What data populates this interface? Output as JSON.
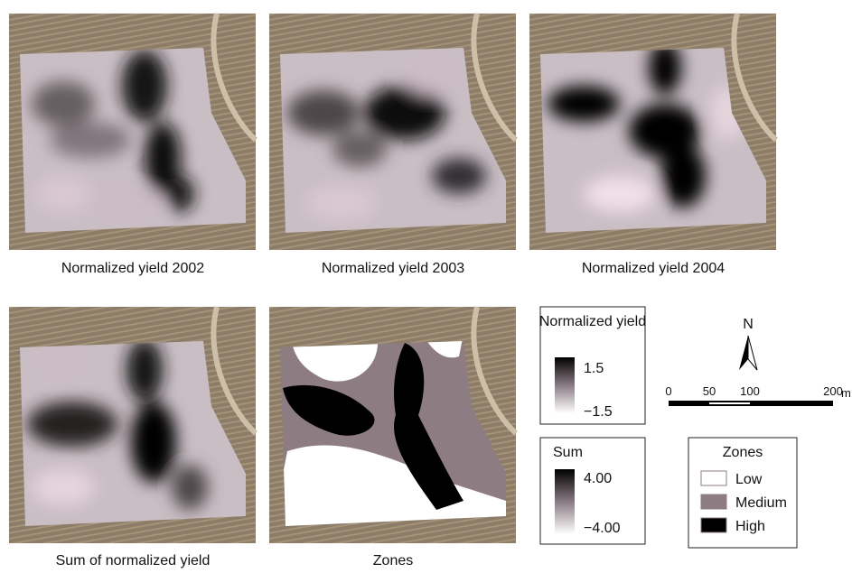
{
  "panels": [
    {
      "caption": "Normalized yield 2002"
    },
    {
      "caption": "Normalized yield 2003"
    },
    {
      "caption": "Normalized yield 2004"
    },
    {
      "caption": "Sum of normalized yield"
    },
    {
      "caption": "Zones"
    }
  ],
  "legends": {
    "normalized": {
      "title": "Normalized yield",
      "max": "1.5",
      "min": "−1.5"
    },
    "sum": {
      "title": "Sum",
      "max": "4.00",
      "min": "−4.00"
    },
    "zones": {
      "title": "Zones",
      "items": [
        {
          "label": "Low",
          "color": "#ffffff"
        },
        {
          "label": "Medium",
          "color": "#8d7d83"
        },
        {
          "label": "High",
          "color": "#000000"
        }
      ]
    }
  },
  "north": "N",
  "scale": {
    "labels": [
      "0",
      "50",
      "100",
      "200"
    ],
    "unit": "m"
  }
}
